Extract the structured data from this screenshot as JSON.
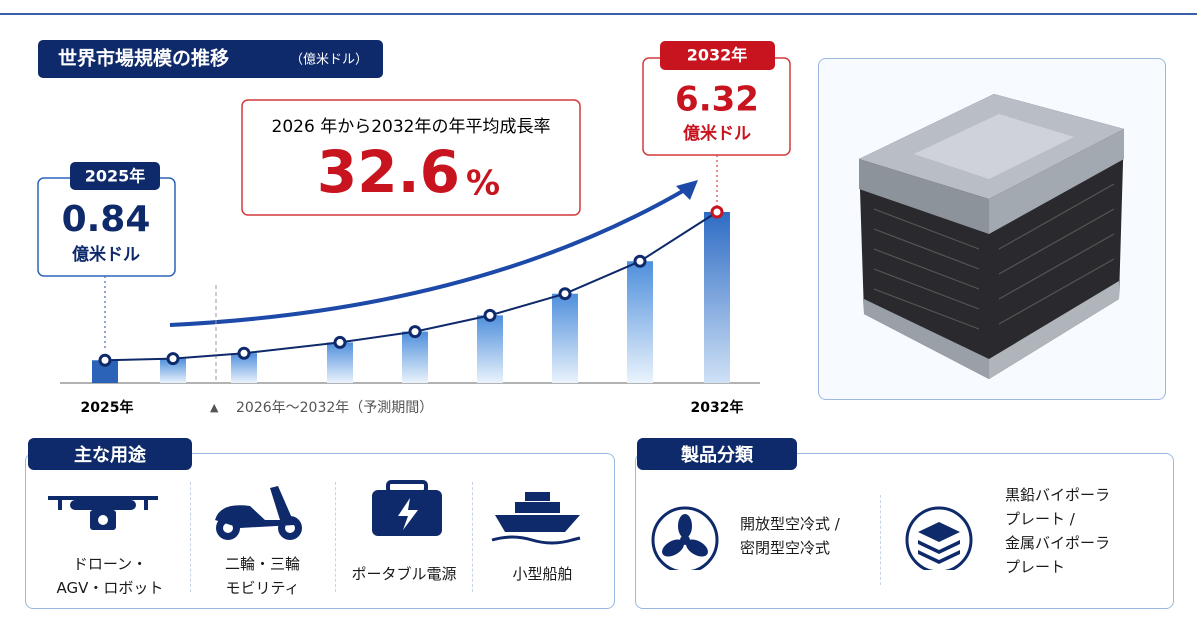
{
  "chart_data": {
    "type": "bar",
    "title": "世界市場規模の推移",
    "unit": "（億米ドル）",
    "categories": [
      "2025年",
      null,
      null,
      null,
      null,
      null,
      null,
      null,
      "2032年"
    ],
    "values": [
      0.84,
      0.9,
      1.1,
      1.5,
      1.9,
      2.5,
      3.3,
      4.5,
      6.32
    ],
    "ylim": [
      0,
      7
    ],
    "color": "#2b63b8",
    "annotations": {
      "start_badge": "2025年",
      "start_unit": "億米ドル",
      "end_badge": "2032年",
      "end_unit": "億米ドル",
      "cagr_label": "2026 年から2032年の年平均成長率",
      "cagr_value": "32.6",
      "cagr_unit": "%",
      "forecast": "2026年～2032年（予測期間）"
    }
  },
  "uses": {
    "title": "主な用途",
    "items": [
      [
        "ドローン・",
        "AGV・ロボット"
      ],
      [
        "二輪・三輪",
        "モビリティ"
      ],
      [
        "ポータブル電源"
      ],
      [
        "小型船舶"
      ]
    ]
  },
  "products": {
    "title": "製品分類",
    "items": [
      [
        "開放型空冷式 /",
        "密閉型空冷式"
      ],
      [
        "黒鉛バイポーラ",
        "プレート /",
        "金属バイポーラ",
        "プレート"
      ]
    ]
  }
}
